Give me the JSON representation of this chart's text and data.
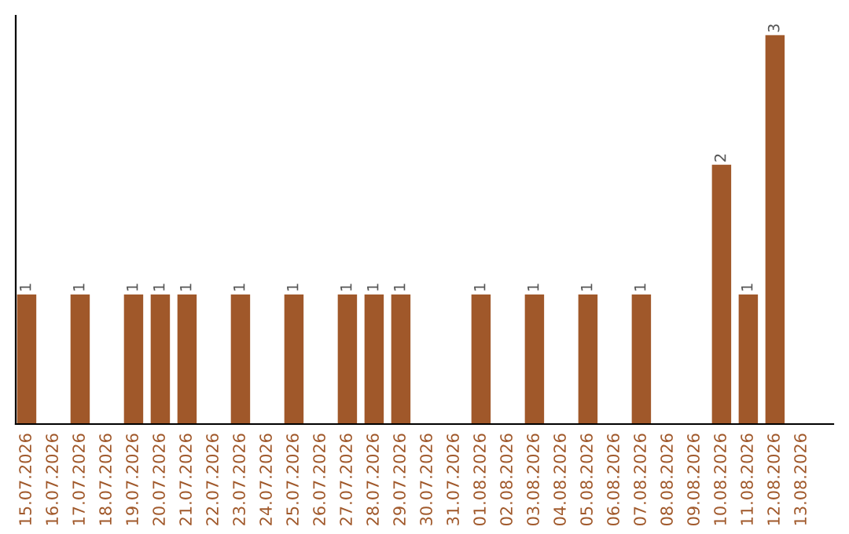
{
  "chart_data": {
    "type": "bar",
    "categories": [
      "15.07.2026",
      "16.07.2026",
      "17.07.2026",
      "18.07.2026",
      "19.07.2026",
      "20.07.2026",
      "21.07.2026",
      "22.07.2026",
      "23.07.2026",
      "24.07.2026",
      "25.07.2026",
      "26.07.2026",
      "27.07.2026",
      "28.07.2026",
      "29.07.2026",
      "30.07.2026",
      "31.07.2026",
      "01.08.2026",
      "02.08.2026",
      "03.08.2026",
      "04.08.2026",
      "05.08.2026",
      "06.08.2026",
      "07.08.2026",
      "08.08.2026",
      "09.08.2026",
      "10.08.2026",
      "11.08.2026",
      "12.08.2026",
      "13.08.2026"
    ],
    "values": [
      1,
      0,
      1,
      0,
      1,
      1,
      1,
      0,
      1,
      0,
      1,
      0,
      1,
      1,
      1,
      0,
      0,
      1,
      0,
      1,
      0,
      1,
      0,
      1,
      0,
      0,
      2,
      1,
      3,
      0
    ],
    "value_labels": [
      "1",
      null,
      "1",
      null,
      "1",
      "1",
      "1",
      null,
      "1",
      null,
      "1",
      null,
      "1",
      "1",
      "1",
      null,
      null,
      "1",
      null,
      "1",
      null,
      "1",
      null,
      "1",
      null,
      null,
      "2",
      "1",
      "3",
      null
    ],
    "color": "#a0582a",
    "tick_labels": "x",
    "grid": false,
    "legend": false
  }
}
